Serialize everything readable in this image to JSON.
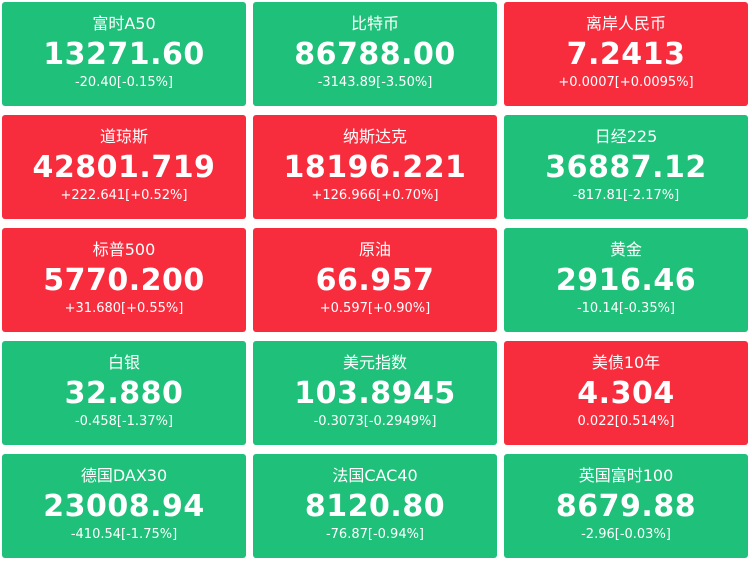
{
  "colors": {
    "up": "#f72d3e",
    "down": "#1ec07a",
    "text": "#ffffff"
  },
  "tiles": [
    {
      "name": "富时A50",
      "price": "13271.60",
      "change": "-20.40[-0.15%]",
      "trend": "down"
    },
    {
      "name": "比特币",
      "price": "86788.00",
      "change": "-3143.89[-3.50%]",
      "trend": "down"
    },
    {
      "name": "离岸人民币",
      "price": "7.2413",
      "change": "+0.0007[+0.0095%]",
      "trend": "up"
    },
    {
      "name": "道琼斯",
      "price": "42801.719",
      "change": "+222.641[+0.52%]",
      "trend": "up"
    },
    {
      "name": "纳斯达克",
      "price": "18196.221",
      "change": "+126.966[+0.70%]",
      "trend": "up"
    },
    {
      "name": "日经225",
      "price": "36887.12",
      "change": "-817.81[-2.17%]",
      "trend": "down"
    },
    {
      "name": "标普500",
      "price": "5770.200",
      "change": "+31.680[+0.55%]",
      "trend": "up"
    },
    {
      "name": "原油",
      "price": "66.957",
      "change": "+0.597[+0.90%]",
      "trend": "up"
    },
    {
      "name": "黄金",
      "price": "2916.46",
      "change": "-10.14[-0.35%]",
      "trend": "down"
    },
    {
      "name": "白银",
      "price": "32.880",
      "change": "-0.458[-1.37%]",
      "trend": "down"
    },
    {
      "name": "美元指数",
      "price": "103.8945",
      "change": "-0.3073[-0.2949%]",
      "trend": "down"
    },
    {
      "name": "美债10年",
      "price": "4.304",
      "change": "0.022[0.514%]",
      "trend": "up"
    },
    {
      "name": "德国DAX30",
      "price": "23008.94",
      "change": "-410.54[-1.75%]",
      "trend": "down"
    },
    {
      "name": "法国CAC40",
      "price": "8120.80",
      "change": "-76.87[-0.94%]",
      "trend": "down"
    },
    {
      "name": "英国富时100",
      "price": "8679.88",
      "change": "-2.96[-0.03%]",
      "trend": "down"
    }
  ]
}
